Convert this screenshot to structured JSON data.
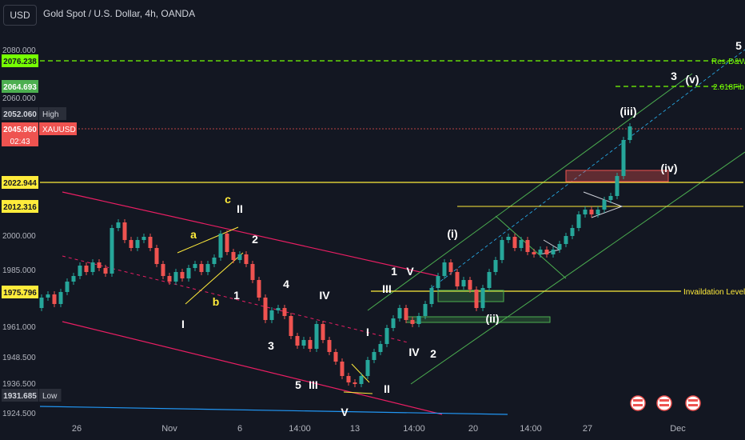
{
  "header": {
    "currency": "USD",
    "title": "Gold Spot / U.S. Dollar, 4h, OANDA"
  },
  "colors": {
    "background": "#131722",
    "up": "#26a69a",
    "down": "#ef5350",
    "axis_text": "#b2b5be",
    "magenta": "#e91e63",
    "green_channel": "#4caf50",
    "yellow": "#ffeb3b",
    "lime_dash": "#76ff03",
    "blue": "#2196f3"
  },
  "chart_data": {
    "type": "candlestick",
    "symbol": "XAUUSD",
    "timeframe": "4h",
    "y_ticks": [
      "2080.000",
      "2060.000",
      "2000.000",
      "1985.000",
      "1961.000",
      "1948.500",
      "1936.500",
      "1924.500"
    ],
    "x_ticks": [
      "26",
      "Nov",
      "6",
      "14:00",
      "13",
      "14:00",
      "20",
      "14:00",
      "27",
      "Dec"
    ],
    "price_labels": [
      {
        "text": "2076.238",
        "bg": "#76ff03",
        "fg": "#131722"
      },
      {
        "text": "2064.693",
        "bg": "#4caf50",
        "fg": "#ffffff"
      },
      {
        "text": "2052.060",
        "bg": "#2a2e39",
        "fg": "#d1d4dc",
        "tag": "High"
      },
      {
        "text": "2045.960",
        "bg": "#ef5350",
        "fg": "#ffffff",
        "tag": "XAUUSD",
        "countdown": "02:43"
      },
      {
        "text": "2022.944",
        "bg": "#ffeb3b",
        "fg": "#131722"
      },
      {
        "text": "2012.316",
        "bg": "#ffeb3b",
        "fg": "#131722"
      },
      {
        "text": "1975.796",
        "bg": "#ffeb3b",
        "fg": "#131722"
      },
      {
        "text": "1931.685",
        "bg": "#2a2e39",
        "fg": "#d1d4dc",
        "tag": "Low"
      }
    ],
    "line_labels": {
      "res": "Res-D&W",
      "fib": "2.618Fib",
      "invalidation": "Invaildation Level"
    },
    "wave_labels": [
      "5",
      "3",
      "(v)",
      "(iii)",
      "(iv)",
      "(i)",
      "(ii)",
      "1",
      "V",
      "III",
      "I",
      "IV",
      "2",
      "II",
      "c",
      "II",
      "a",
      "2",
      "b",
      "1",
      "4",
      "IV",
      "I",
      "3",
      "5",
      "III",
      "V"
    ]
  }
}
